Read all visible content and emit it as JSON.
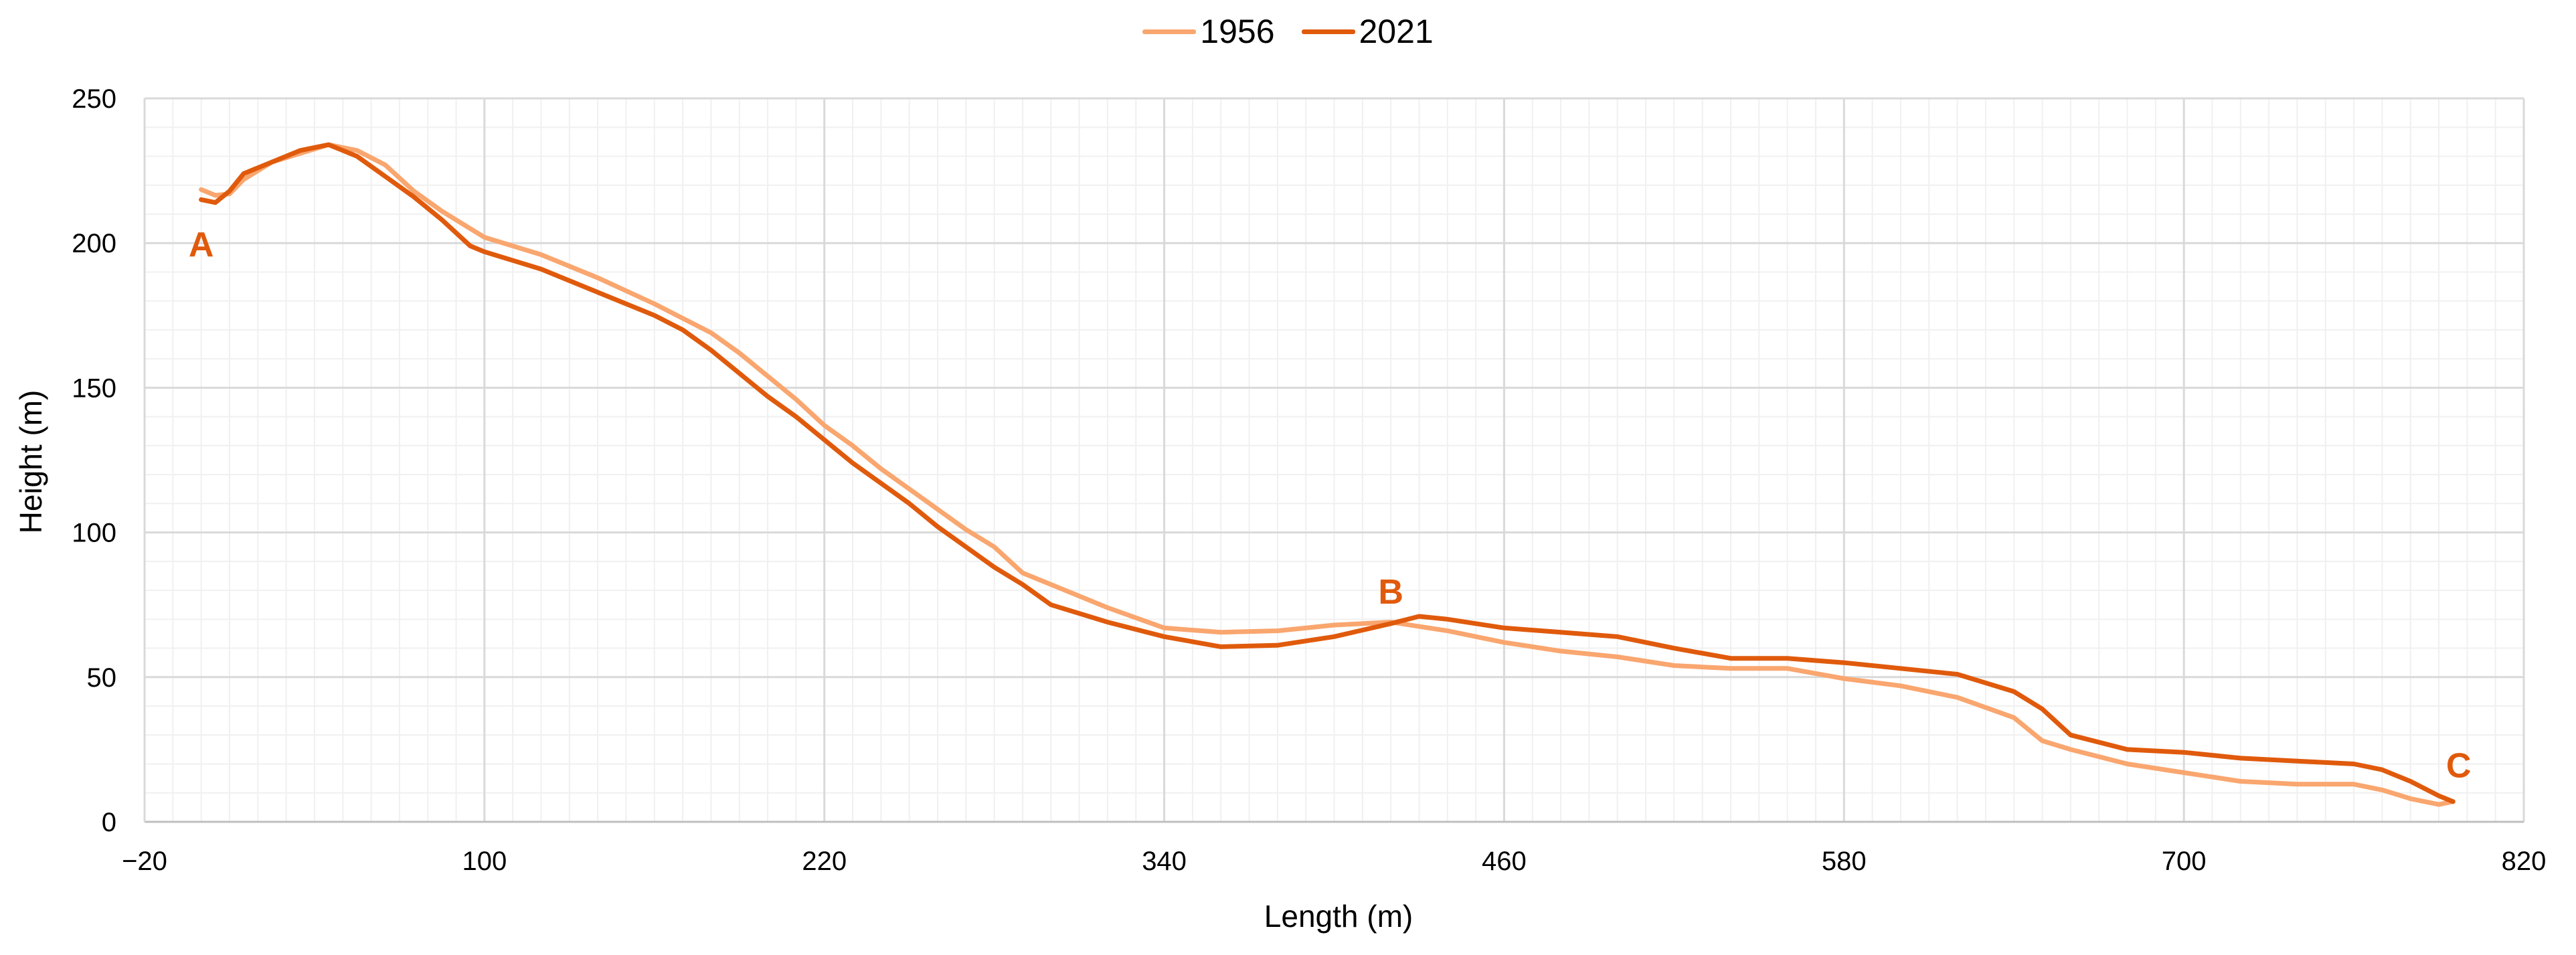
{
  "chart_data": {
    "type": "line",
    "title": "",
    "xlabel": "Length (m)",
    "ylabel": "Height (m)",
    "xlim": [
      -20,
      820
    ],
    "ylim": [
      0,
      250
    ],
    "x_ticks": [
      -20,
      100,
      220,
      340,
      460,
      580,
      700,
      820
    ],
    "x_tick_labels": [
      "−20",
      "100",
      "220",
      "340",
      "460",
      "580",
      "700",
      "820"
    ],
    "y_ticks": [
      0,
      50,
      100,
      150,
      200,
      250
    ],
    "y_tick_labels": [
      "0",
      "50",
      "100",
      "150",
      "200",
      "250"
    ],
    "grid": true,
    "minor_grid": true,
    "legend_position": "top-center",
    "legend": [
      "1956",
      "2021"
    ],
    "series": [
      {
        "name": "1956",
        "color": "#F9A66F",
        "x": [
          0,
          5,
          10,
          15,
          25,
          35,
          45,
          55,
          65,
          75,
          85,
          95,
          100,
          120,
          140,
          160,
          170,
          180,
          190,
          200,
          210,
          220,
          230,
          240,
          250,
          260,
          270,
          280,
          290,
          300,
          320,
          340,
          360,
          380,
          400,
          420,
          430,
          440,
          460,
          480,
          500,
          520,
          540,
          560,
          580,
          600,
          620,
          640,
          650,
          660,
          680,
          700,
          720,
          740,
          760,
          770,
          780,
          790,
          795
        ],
        "values": [
          218.5,
          216.5,
          217,
          222,
          228,
          231,
          234,
          232,
          227,
          218,
          211,
          205,
          202,
          196,
          188,
          179,
          174,
          169,
          162,
          154,
          146,
          137,
          130,
          122,
          115,
          108,
          101,
          95,
          86,
          82,
          74,
          67,
          65.5,
          66,
          68,
          69,
          67.5,
          66,
          62,
          59,
          57,
          54,
          53,
          53,
          49.5,
          47,
          43,
          36,
          28,
          25,
          20,
          17,
          14,
          13,
          13,
          11,
          8,
          6,
          7
        ]
      },
      {
        "name": "2021",
        "color": "#E05A0C",
        "x": [
          0,
          5,
          10,
          15,
          25,
          35,
          45,
          55,
          65,
          75,
          85,
          95,
          100,
          120,
          140,
          160,
          170,
          180,
          190,
          200,
          210,
          220,
          230,
          240,
          250,
          260,
          270,
          280,
          290,
          300,
          320,
          340,
          360,
          380,
          400,
          420,
          430,
          440,
          460,
          480,
          500,
          520,
          540,
          560,
          580,
          600,
          620,
          640,
          650,
          660,
          680,
          700,
          720,
          740,
          760,
          770,
          780,
          790,
          795
        ],
        "values": [
          215,
          214,
          218,
          224,
          228,
          232,
          234,
          230,
          223,
          216,
          208,
          199,
          197,
          191,
          183,
          175,
          170,
          163,
          155,
          147,
          140,
          132,
          124,
          117,
          110,
          102,
          95,
          88,
          82,
          75,
          69,
          64,
          60.5,
          61,
          64,
          68.5,
          71,
          70,
          67,
          65.5,
          64,
          60,
          56.5,
          56.5,
          55,
          53,
          51,
          45,
          39,
          30,
          25,
          24,
          22,
          21,
          20,
          18,
          14,
          9,
          7
        ]
      }
    ],
    "annotations": [
      {
        "text": "A",
        "x": 0,
        "y": 200
      },
      {
        "text": "B",
        "x": 420,
        "y": 80
      },
      {
        "text": "C",
        "x": 797,
        "y": 20
      }
    ]
  }
}
